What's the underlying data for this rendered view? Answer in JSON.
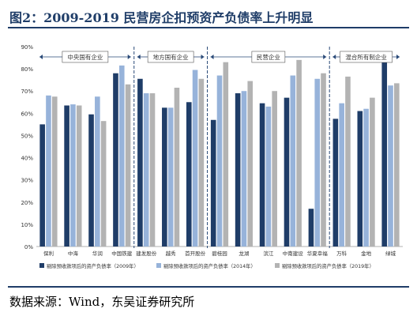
{
  "header": {
    "title": "图2：2009-2019 民营房企扣预资产负债率上升明显"
  },
  "footer": {
    "source": "数据来源：Wind，东吴证券研究所"
  },
  "colors": {
    "series_2009": "#1f3d68",
    "series_2014": "#97b3da",
    "series_2019": "#b3b3b3",
    "group_divider": "#2a4a78",
    "axis_text": "#333333",
    "title": "#1f3d68"
  },
  "chart_data": {
    "type": "bar",
    "title": "",
    "xlabel": "",
    "ylabel": "",
    "ylim": [
      0,
      90
    ],
    "yticks": [
      "0%",
      "10%",
      "20%",
      "30%",
      "40%",
      "50%",
      "60%",
      "70%",
      "80%",
      "90%"
    ],
    "grid": false,
    "legend_position": "bottom",
    "categories": [
      "保利",
      "中海",
      "华润",
      "中国铁建",
      "建发股份",
      "越秀",
      "首开股份",
      "碧桂园",
      "龙湖",
      "滨江",
      "中南建设",
      "华夏幸福",
      "万科",
      "金地",
      "绿城"
    ],
    "groups": [
      {
        "label": "中央国有企业",
        "categories": [
          "保利",
          "中海",
          "华润",
          "中国铁建"
        ]
      },
      {
        "label": "地方国有企业",
        "categories": [
          "建发股份",
          "越秀",
          "首开股份"
        ]
      },
      {
        "label": "民营企业",
        "categories": [
          "碧桂园",
          "龙湖",
          "滨江",
          "中南建设",
          "华夏幸福"
        ]
      },
      {
        "label": "混合所有制企业",
        "categories": [
          "万科",
          "金地",
          "绿城"
        ]
      }
    ],
    "series": [
      {
        "name": "剔除预收款项后的资产负债率（2009年）",
        "values": [
          55,
          63.5,
          59.5,
          78,
          75.5,
          62.5,
          65,
          57,
          69,
          64.5,
          67,
          17,
          57.5,
          61,
          83.5
        ]
      },
      {
        "name": "剔除预收款项后的资产负债率（2014年）",
        "values": [
          68,
          64,
          67.5,
          81.5,
          69,
          62.5,
          79.5,
          77,
          70,
          63,
          77,
          75.5,
          64.5,
          62,
          72.5
        ]
      },
      {
        "name": "剔除预收款项后的资产负债率（2019年）",
        "values": [
          67.5,
          63.5,
          56.5,
          73,
          69,
          71.5,
          75.5,
          83,
          74.5,
          70,
          84,
          78,
          76.5,
          67,
          73.5
        ]
      }
    ]
  }
}
